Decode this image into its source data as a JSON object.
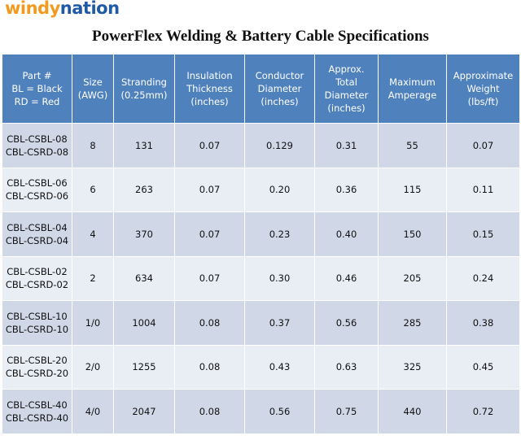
{
  "logo": {
    "part1": "windy",
    "part2": "nation"
  },
  "title": "PowerFlex Welding & Battery Cable Specifications",
  "table": {
    "header": [
      [
        "Part #",
        "BL = Black",
        "RD = Red"
      ],
      [
        "Size",
        "(AWG)"
      ],
      [
        "Stranding",
        "(0.25mm)"
      ],
      [
        "Insulation",
        "Thickness",
        "(inches)"
      ],
      [
        "Conductor",
        "Diameter",
        "(inches)"
      ],
      [
        "Approx.",
        "Total",
        "Diameter",
        "(inches)"
      ],
      [
        "Maximum",
        "Amperage"
      ],
      [
        "Approximate",
        "Weight",
        "(lbs/ft)"
      ]
    ],
    "rows": [
      [
        [
          "CBL-CSBL-08",
          "CBL-CSRD-08"
        ],
        "8",
        "131",
        "0.07",
        "0.129",
        "0.31",
        "55",
        "0.07"
      ],
      [
        [
          "CBL-CSBL-06",
          "CBL-CSRD-06"
        ],
        "6",
        "263",
        "0.07",
        "0.20",
        "0.36",
        "115",
        "0.11"
      ],
      [
        [
          "CBL-CSBL-04",
          "CBL-CSRD-04"
        ],
        "4",
        "370",
        "0.07",
        "0.23",
        "0.40",
        "150",
        "0.15"
      ],
      [
        [
          "CBL-CSBL-02",
          "CBL-CSRD-02"
        ],
        "2",
        "634",
        "0.07",
        "0.30",
        "0.46",
        "205",
        "0.24"
      ],
      [
        [
          "CBL-CSBL-10",
          "CBL-CSRD-10"
        ],
        "1/0",
        "1004",
        "0.08",
        "0.37",
        "0.56",
        "285",
        "0.38"
      ],
      [
        [
          "CBL-CSBL-20",
          "CBL-CSRD-20"
        ],
        "2/0",
        "1255",
        "0.08",
        "0.43",
        "0.63",
        "325",
        "0.45"
      ],
      [
        [
          "CBL-CSBL-40",
          "CBL-CSRD-40"
        ],
        "4/0",
        "2047",
        "0.08",
        "0.56",
        "0.75",
        "440",
        "0.72"
      ]
    ]
  }
}
